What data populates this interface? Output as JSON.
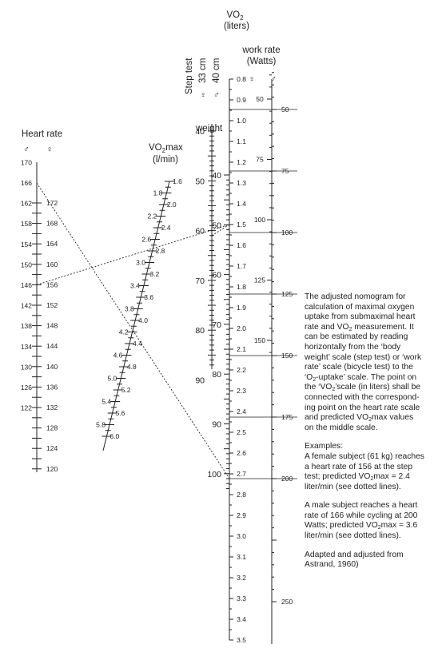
{
  "vo2_header": {
    "pre": "VO",
    "sub": "2",
    "units": "(liters)"
  },
  "work_header": {
    "title": "work rate",
    "units": "(Watts)",
    "female_symbol": "♀",
    "male_symbol": "♂"
  },
  "step_header": {
    "title": "Step test",
    "cm33": "33 cm",
    "cm40": "40 cm",
    "female_symbol": "♀",
    "male_symbol": "♂"
  },
  "weight_label": "weight",
  "heart_header": {
    "title": "Heart rate",
    "male_symbol": "♂",
    "female_symbol": "♀"
  },
  "vo2max_header": {
    "pre": "VO",
    "sub": "2",
    "post": "max",
    "units": "(l/min)"
  },
  "scales": {
    "heart_male": [
      170,
      166,
      162,
      158,
      154,
      150,
      146,
      142,
      138,
      134,
      130,
      126,
      122
    ],
    "heart_female": [
      172,
      168,
      164,
      160,
      156,
      152,
      148,
      144,
      140,
      136,
      132,
      128,
      124,
      120
    ],
    "vo2max_left": [
      "1.8",
      "2.2",
      "2.6",
      "3.0",
      "3.4",
      "3.8",
      "4.2",
      "4.6",
      "5.0",
      "5.4",
      "5.8"
    ],
    "vo2max_right": [
      "1.6",
      "2.0",
      "2.4",
      "2.8",
      "3.2",
      "3.6",
      "4.0",
      "4.4",
      "4.8",
      "5.2",
      "5.6",
      "6.0"
    ],
    "weight_female": [
      40,
      50,
      60,
      70,
      80,
      90
    ],
    "weight_male": [
      40,
      50,
      60,
      70,
      80,
      90,
      100
    ],
    "vo2_liters": [
      "0.8",
      "0.9",
      "1.0",
      "1.1",
      "1.2",
      "1.3",
      "1.4",
      "1.5",
      "1.6",
      "1.7",
      "1.8",
      "1.9",
      "2.0",
      "2.1",
      "2.2",
      "2.3",
      "2.4",
      "2.5",
      "2.6",
      "2.7",
      "2.8",
      "2.9",
      "3.0",
      "3.1",
      "3.2",
      "3.3",
      "3.4",
      "3.5"
    ],
    "watts_female": [
      50,
      75,
      100,
      125,
      150
    ],
    "watts_male": [
      50,
      75,
      100,
      125,
      150,
      175,
      200,
      250
    ]
  },
  "examples": [
    {
      "heart_rate": 156,
      "weight_kg": 61,
      "vo2max": 2.4
    },
    {
      "heart_rate": 166,
      "watts": 200,
      "vo2max": 3.6
    }
  ],
  "description": {
    "p1": {
      "a": "The adjusted nomogram for calculation of maximal oxygen uptake from submaximal heart rate and VO",
      "a_sub": "2",
      "b": " measurement. It can be estimated by reading horizontally from the ‘body weight’ scale (step test) or ‘work rate’ scale (bicycle test) to the ‘O",
      "b_sub": "2",
      "c": "-uptake’ scale. The point on the ‘VO",
      "c_sub": "2",
      "d": "’scale (in liters) shall be connected with the correspond-ing point on the heart rate scale and predicted VO",
      "d_sub": "2",
      "e": "max values on the middle scale."
    },
    "examples_title": "Examples:",
    "p2": {
      "a": "A female subject (61 kg) reaches a heart rate of 156 at the step test; predicted VO",
      "a_sub": "2",
      "b": "max = 2.4 liter/min (see dotted lines)."
    },
    "p3": {
      "a": "A male subject reaches a heart rate of 166 while cycling at 200 Watts; predicted VO",
      "a_sub": "2",
      "b": "max = 3.6 liter/min (see dotted lines)."
    },
    "source": "Adapted and adjusted from Astrand, 1960)"
  },
  "colors": {
    "ink": "#222222"
  }
}
